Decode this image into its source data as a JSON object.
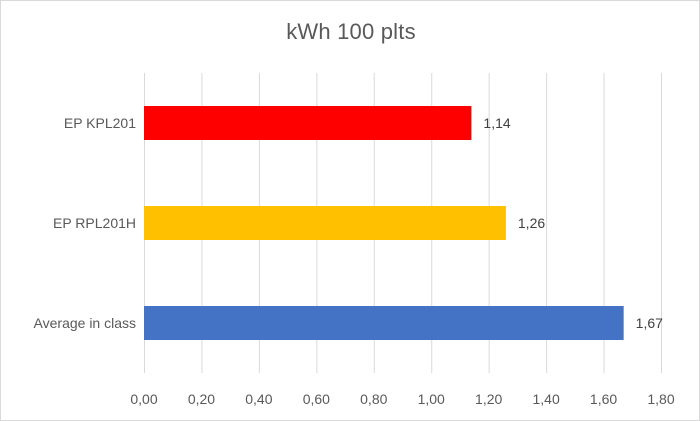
{
  "chart_data": {
    "type": "bar",
    "orientation": "horizontal",
    "title": "kWh 100 plts",
    "categories": [
      "EP KPL201",
      "EP RPL201H",
      "Average in class"
    ],
    "values": [
      1.14,
      1.26,
      1.67
    ],
    "value_labels": [
      "1,14",
      "1,26",
      "1,67"
    ],
    "bar_colors": [
      "#ff0000",
      "#ffc000",
      "#4472c4"
    ],
    "xlim": [
      0,
      1.8
    ],
    "x_ticks": [
      0,
      0.2,
      0.4,
      0.6,
      0.8,
      1.0,
      1.2,
      1.4,
      1.6,
      1.8
    ],
    "x_tick_labels": [
      "0,00",
      "0,20",
      "0,40",
      "0,60",
      "0,80",
      "1,00",
      "1,20",
      "1,40",
      "1,60",
      "1,80"
    ],
    "xlabel": "",
    "ylabel": "",
    "grid": "vertical",
    "legend": "none"
  }
}
